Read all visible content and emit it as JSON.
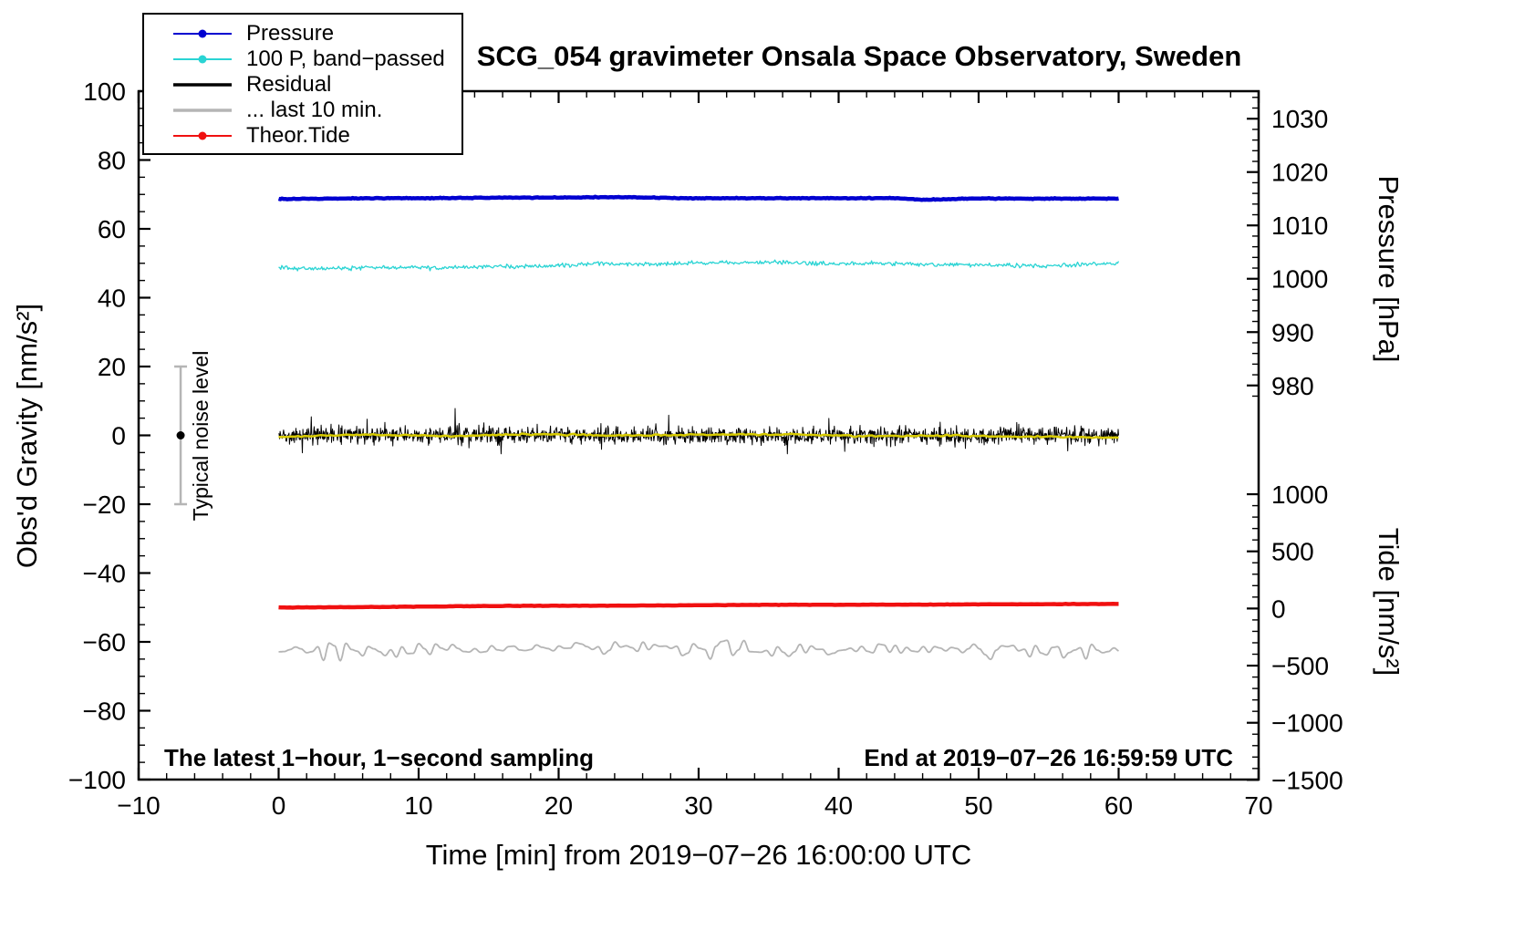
{
  "chart_data": {
    "type": "line",
    "title": "SCG_054 gravimeter Onsala Space Observatory, Sweden",
    "xlabel": "Time [min] from 2019−07−26 16:00:00 UTC",
    "ylabel_left": "Obs'd Gravity [nm/s²]",
    "xlim": [
      -10,
      70
    ],
    "ylim_gravity": [
      -100,
      100
    ],
    "x_major_ticks": [
      -10,
      0,
      10,
      20,
      30,
      40,
      50,
      60,
      70
    ],
    "x_minor_step": 2,
    "y_major_ticks_gravity": [
      -100,
      -80,
      -60,
      -40,
      -20,
      0,
      20,
      40,
      60,
      80,
      100
    ],
    "y_minor_step_gravity": 5,
    "right_axis_pressure": {
      "label": "Pressure [hPa]",
      "major_ticks_hpa": [
        1030,
        1020,
        1010,
        1000,
        990,
        980
      ],
      "minor_step_hpa": 2,
      "tick_range_hpa": [
        978,
        1034
      ],
      "gravity_per_hpa": 1.55,
      "gravity_at_1000hpa": 45.5
    },
    "right_axis_tide": {
      "label": "Tide [nm/s²]",
      "major_ticks": [
        1000,
        500,
        0,
        -500,
        -1000,
        -1500
      ],
      "minor_step": 100,
      "tick_range": [
        -1500,
        1000
      ],
      "gravity_per_unit": 0.0332,
      "gravity_at_zero": -50.3
    },
    "noise_marker": {
      "label": "Typical noise level",
      "x_min": -7,
      "center_gravity": 0,
      "half_range_gravity": 20,
      "bar_color": "#b5b5b5",
      "dot_color": "#000000"
    },
    "annotations": {
      "bottom_left": "The latest 1−hour, 1−second sampling",
      "bottom_right": "End at 2019−07−26 16:59:59 UTC"
    },
    "legend": {
      "items": [
        {
          "label": "Pressure",
          "color": "#0000d0",
          "marker": "line-dot",
          "line_width": 2
        },
        {
          "label": "100 P, band−passed",
          "color": "#2ad4d4",
          "marker": "line-dot",
          "line_width": 2
        },
        {
          "label": "Residual",
          "color": "#000000",
          "marker": "line",
          "line_width": 3.5
        },
        {
          "label": "... last 10 min.",
          "color": "#b5b5b5",
          "marker": "line",
          "line_width": 3.5
        },
        {
          "label": "Theor.Tide",
          "color": "#f01010",
          "marker": "line-dot",
          "line_width": 2
        }
      ]
    },
    "series": [
      {
        "name": "Pressure",
        "color": "#0000d0",
        "width": 4.5,
        "seed": 11,
        "points": 500,
        "noise": 0.1,
        "style": "raw",
        "x_range": [
          0,
          60
        ],
        "axis": "gravity",
        "approx_pressure_hpa": 1015,
        "trend": [
          [
            0,
            68.7
          ],
          [
            8,
            68.9
          ],
          [
            20,
            69.1
          ],
          [
            24,
            69.2
          ],
          [
            30,
            68.9
          ],
          [
            38,
            68.9
          ],
          [
            44,
            68.9
          ],
          [
            46,
            68.5
          ],
          [
            50,
            68.8
          ],
          [
            60,
            68.8
          ]
        ]
      },
      {
        "name": "100 P, band−passed",
        "color": "#2ad4d4",
        "width": 1.3,
        "seed": 22,
        "points": 800,
        "noise": 0.5,
        "style": "raw",
        "x_range": [
          0,
          60
        ],
        "axis": "gravity",
        "trend": [
          [
            0,
            48.7
          ],
          [
            3,
            48.4
          ],
          [
            7,
            48.8
          ],
          [
            11,
            48.7
          ],
          [
            15,
            49.0
          ],
          [
            19,
            49.2
          ],
          [
            23,
            49.9
          ],
          [
            27,
            49.8
          ],
          [
            31,
            50.1
          ],
          [
            35,
            50.3
          ],
          [
            39,
            50.0
          ],
          [
            43,
            49.9
          ],
          [
            47,
            49.7
          ],
          [
            51,
            49.4
          ],
          [
            55,
            49.3
          ],
          [
            58,
            49.7
          ],
          [
            60,
            50.1
          ]
        ]
      },
      {
        "name": "Residual",
        "color": "#000000",
        "width": 1,
        "seed": 33,
        "points": 1700,
        "noise": 2.1,
        "style": "spiky",
        "x_range": [
          0,
          60
        ],
        "axis": "gravity",
        "trend": [
          [
            0,
            0
          ],
          [
            60,
            0
          ]
        ]
      },
      {
        "name": "Residual running mean",
        "color": "#d8cb00",
        "width": 2.5,
        "seed": 44,
        "points": 260,
        "noise": 0.18,
        "style": "raw",
        "x_range": [
          0,
          60
        ],
        "axis": "gravity",
        "trend": [
          [
            0,
            -0.4
          ],
          [
            6,
            0.2
          ],
          [
            12,
            -0.2
          ],
          [
            18,
            0.3
          ],
          [
            24,
            0.0
          ],
          [
            30,
            0.2
          ],
          [
            36,
            0.3
          ],
          [
            42,
            -0.2
          ],
          [
            48,
            -0.1
          ],
          [
            54,
            -0.4
          ],
          [
            60,
            -0.7
          ]
        ]
      },
      {
        "name": "Theor.Tide",
        "color": "#f01010",
        "width": 4.5,
        "seed": 55,
        "points": 300,
        "noise": 0.05,
        "style": "raw",
        "x_range": [
          0,
          60
        ],
        "axis": "gravity",
        "approx_tide": 0,
        "trend": [
          [
            0,
            -50.0
          ],
          [
            20,
            -49.5
          ],
          [
            40,
            -49.2
          ],
          [
            60,
            -49.0
          ]
        ]
      },
      {
        "name": "... last 10 min.",
        "color": "#b5b5b5",
        "width": 1.8,
        "seed": 66,
        "points": 900,
        "noise": 2.0,
        "style": "wave",
        "x_range": [
          0,
          60
        ],
        "axis": "gravity",
        "trend": [
          [
            0,
            -62.3
          ],
          [
            30,
            -62.1
          ],
          [
            60,
            -62.6
          ]
        ]
      }
    ]
  }
}
